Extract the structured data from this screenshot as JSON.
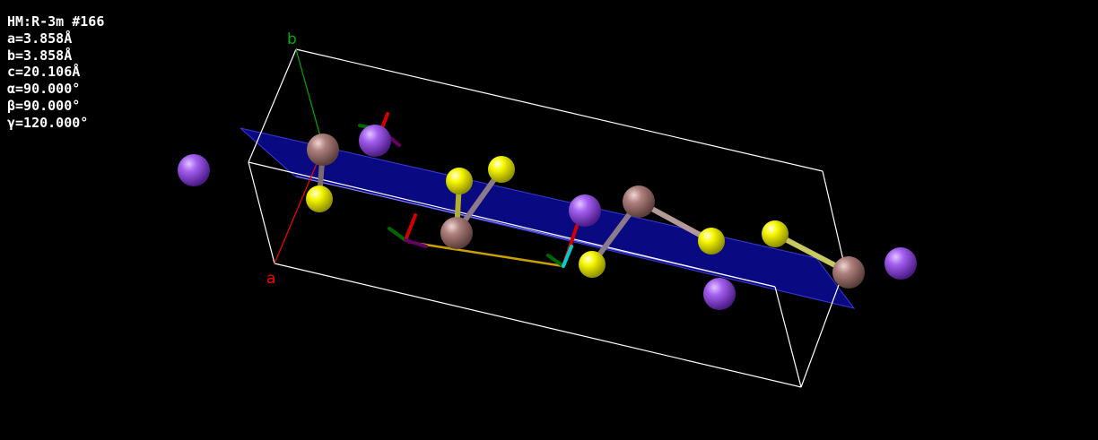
{
  "cell_info": {
    "space_group": "HM:R-3m #166",
    "a": "a=3.858Å",
    "b": "b=3.858Å",
    "c": "c=20.106Å",
    "alpha": "α=90.000°",
    "beta": "β=90.000°",
    "gamma": "γ=120.000°"
  },
  "axes": {
    "a_label": "a",
    "b_label": "b",
    "a_color": "#ff0000",
    "b_color": "#00aa00"
  },
  "colors": {
    "background": "#000000",
    "cell_edges": "#ffffff",
    "lattice_plane": "#0a0a8c",
    "atom_purple": "#9b4fe0",
    "atom_yellow": "#f5f500",
    "atom_brown": "#a97a78",
    "measure_line": "#c9a000"
  }
}
